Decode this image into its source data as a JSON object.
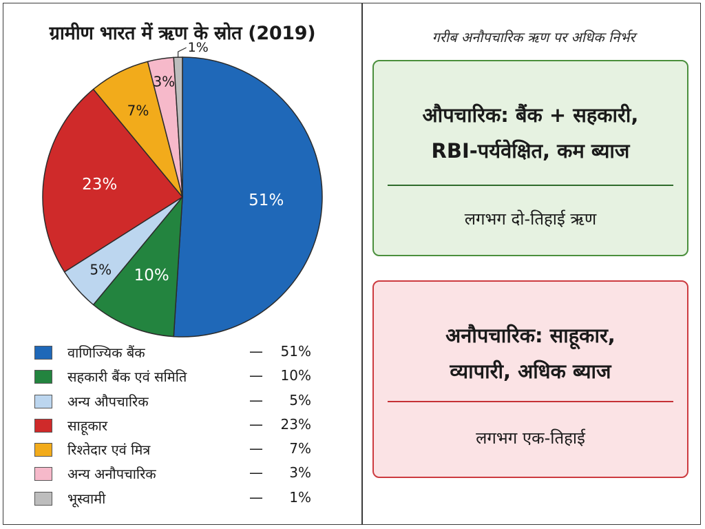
{
  "chart_data": {
    "type": "pie",
    "title": "ग्रामीण भारत में ऋण के स्रोत (2019)",
    "categories": [
      "वाणिज्यिक बैंक",
      "सहकारी बैंक एवं समिति",
      "अन्य औपचारिक",
      "साहूकार",
      "रिश्तेदार एवं मित्र",
      "अन्य अनौपचारिक",
      "भूस्वामी"
    ],
    "values": [
      51,
      10,
      5,
      23,
      7,
      3,
      1
    ],
    "slice_labels": [
      "51%",
      "10%",
      "5%",
      "23%",
      "7%",
      "3%",
      "1%"
    ],
    "colors": [
      "#1f68b8",
      "#23843f",
      "#bcd6ef",
      "#cf2a2a",
      "#f2ab1b",
      "#f6b9ca",
      "#bdbdbd"
    ],
    "legend": {
      "placement": "bottom",
      "dash": "—",
      "entries": [
        {
          "label": "वाणिज्यिक बैंक",
          "value": "51%"
        },
        {
          "label": "सहकारी बैंक एवं समिति",
          "value": "10%"
        },
        {
          "label": "अन्य औपचारिक",
          "value": "5%"
        },
        {
          "label": "साहूकार",
          "value": "23%"
        },
        {
          "label": "रिश्तेदार एवं मित्र",
          "value": "7%"
        },
        {
          "label": "अन्य अनौपचारिक",
          "value": "3%"
        },
        {
          "label": "भूस्वामी",
          "value": "1%"
        }
      ]
    }
  },
  "right": {
    "subtitle": "गरीब अनौपचारिक ऋण पर अधिक निर्भर",
    "formal": {
      "line1": "औपचारिक: बैंक + सहकारी,",
      "line2": "RBI-पर्यवेक्षित, कम ब्याज",
      "share": "लगभग दो-तिहाई ऋण",
      "color": "#4a8f3c"
    },
    "informal": {
      "line1": "अनौपचारिक: साहूकार,",
      "line2": "व्यापारी, अधिक ब्याज",
      "share": "लगभग एक-तिहाई",
      "color": "#cc3a3f"
    }
  }
}
